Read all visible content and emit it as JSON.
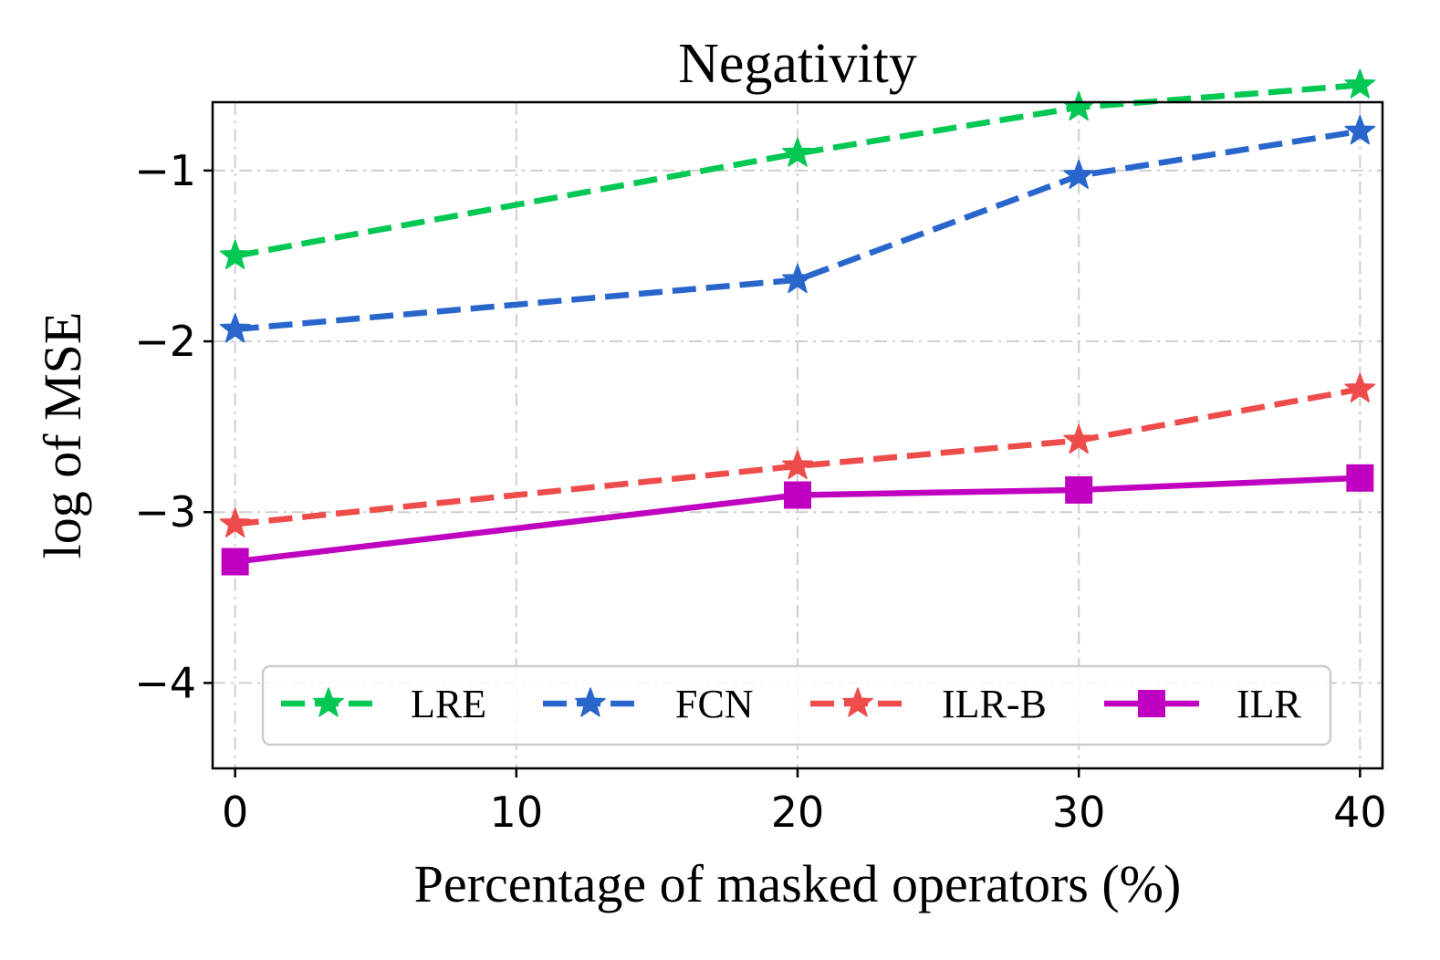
{
  "chart_data": {
    "type": "line",
    "title": "Negativity",
    "xlabel": "Percentage of masked operators (%)",
    "ylabel": "log of MSE",
    "xlim": [
      -0.8,
      40.8
    ],
    "ylim": [
      -4.5,
      -0.6
    ],
    "xticks": [
      0,
      10,
      20,
      30,
      40
    ],
    "xtick_labels": [
      "0",
      "10",
      "20",
      "30",
      "40"
    ],
    "yticks": [
      -4,
      -3,
      -2,
      -1
    ],
    "ytick_labels": [
      "−4",
      "−3",
      "−2",
      "−1"
    ],
    "grid": true,
    "legend_position": "lower-center",
    "x": [
      0,
      20,
      30,
      40
    ],
    "series": [
      {
        "name": "LRE",
        "values": [
          -1.5,
          -0.9,
          -0.63,
          -0.5
        ],
        "color": "#00c853",
        "style": "dashed",
        "marker": "star"
      },
      {
        "name": "FCN",
        "values": [
          -1.93,
          -1.64,
          -1.03,
          -0.77
        ],
        "color": "#2866cc",
        "style": "dashed",
        "marker": "star"
      },
      {
        "name": "ILR-B",
        "values": [
          -3.07,
          -2.73,
          -2.58,
          -2.28
        ],
        "color": "#ee4b4b",
        "style": "dashed",
        "marker": "star"
      },
      {
        "name": "ILR",
        "values": [
          -3.29,
          -2.9,
          -2.87,
          -2.8
        ],
        "color": "#c000c0",
        "style": "solid",
        "marker": "square"
      }
    ]
  }
}
